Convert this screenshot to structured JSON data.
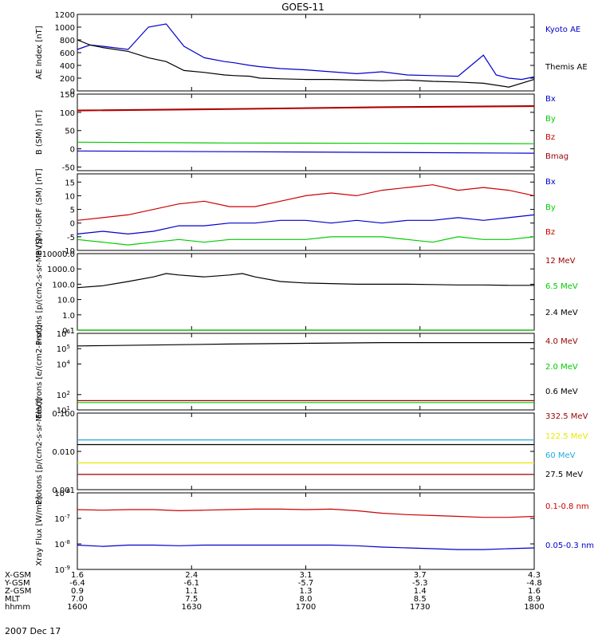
{
  "title": "GOES-11",
  "date_label": "2007 Dec 17",
  "colors": {
    "black": "#000000",
    "blue": "#0000cc",
    "red": "#cc0000",
    "green": "#00cc00",
    "darkred": "#990000",
    "yellow": "#e8e800",
    "cyan": "#22a8dd"
  },
  "chart_data": [
    {
      "id": "ae",
      "type": "line",
      "ylabel": "AE Index [nT]",
      "yscale": "linear",
      "ylim": [
        0,
        1200
      ],
      "yticks": [
        0,
        200,
        400,
        600,
        800,
        1000,
        1200
      ],
      "ytick_labels": [
        "0",
        "200",
        "400",
        "600",
        "800",
        "1000",
        "1200"
      ],
      "series": [
        {
          "name": "Kyoto AE",
          "color_key": "blue",
          "t": [
            0,
            5,
            10,
            20,
            28,
            35,
            42,
            50,
            58,
            62,
            68,
            72,
            80,
            90,
            100,
            110,
            120,
            130,
            140,
            150,
            160,
            165,
            170,
            175,
            180
          ],
          "v": [
            650,
            720,
            700,
            650,
            1000,
            1050,
            700,
            520,
            460,
            440,
            400,
            380,
            350,
            330,
            300,
            270,
            300,
            250,
            240,
            230,
            560,
            250,
            200,
            180,
            220
          ]
        },
        {
          "name": "Themis AE",
          "color_key": "black",
          "t": [
            0,
            5,
            10,
            20,
            28,
            35,
            42,
            50,
            58,
            62,
            68,
            72,
            80,
            90,
            100,
            110,
            120,
            130,
            140,
            150,
            160,
            170,
            180
          ],
          "v": [
            800,
            720,
            680,
            620,
            520,
            460,
            320,
            290,
            250,
            240,
            230,
            200,
            190,
            180,
            180,
            170,
            160,
            170,
            150,
            140,
            120,
            60,
            180
          ]
        }
      ]
    },
    {
      "id": "bsm",
      "type": "line",
      "ylabel": "B (SM) [nT]",
      "yscale": "linear",
      "ylim": [
        -60,
        150
      ],
      "yticks": [
        -50,
        0,
        50,
        100,
        150
      ],
      "ytick_labels": [
        "-50",
        "0",
        "50",
        "100",
        "150"
      ],
      "series": [
        {
          "name": "Bx",
          "color_key": "blue",
          "t": [
            0,
            60,
            120,
            180
          ],
          "v": [
            -6,
            -8,
            -10,
            -12
          ]
        },
        {
          "name": "By",
          "color_key": "green",
          "t": [
            0,
            60,
            120,
            180
          ],
          "v": [
            18,
            16,
            15,
            14
          ]
        },
        {
          "name": "Bz",
          "color_key": "red",
          "t": [
            0,
            60,
            120,
            180
          ],
          "v": [
            104,
            108,
            113,
            116
          ]
        },
        {
          "name": "Bmag",
          "color_key": "darkred",
          "t": [
            0,
            60,
            120,
            180
          ],
          "v": [
            106,
            110,
            115,
            118
          ]
        }
      ]
    },
    {
      "id": "bdiff",
      "type": "line",
      "ylabel": "B (SM)-IGRF (SM) [nT]",
      "yscale": "linear",
      "ylim": [
        -10,
        18
      ],
      "yticks": [
        -10,
        -5,
        0,
        5,
        10,
        15
      ],
      "ytick_labels": [
        "-10",
        "-5",
        "0",
        "5",
        "10",
        "15"
      ],
      "series": [
        {
          "name": "Bx",
          "color_key": "blue",
          "t": [
            0,
            10,
            20,
            30,
            40,
            50,
            60,
            70,
            80,
            90,
            100,
            110,
            120,
            130,
            140,
            150,
            160,
            170,
            180
          ],
          "v": [
            -4,
            -3,
            -4,
            -3,
            -1,
            -1,
            0,
            0,
            1,
            1,
            0,
            1,
            0,
            1,
            1,
            2,
            1,
            2,
            3
          ]
        },
        {
          "name": "By",
          "color_key": "green",
          "t": [
            0,
            10,
            20,
            30,
            40,
            50,
            60,
            70,
            80,
            90,
            100,
            110,
            120,
            130,
            140,
            150,
            160,
            170,
            180
          ],
          "v": [
            -6,
            -7,
            -8,
            -7,
            -6,
            -7,
            -6,
            -6,
            -6,
            -6,
            -5,
            -5,
            -5,
            -6,
            -7,
            -5,
            -6,
            -6,
            -5
          ]
        },
        {
          "name": "Bz",
          "color_key": "red",
          "t": [
            0,
            10,
            20,
            30,
            40,
            50,
            60,
            70,
            80,
            90,
            100,
            110,
            120,
            130,
            140,
            150,
            160,
            170,
            180
          ],
          "v": [
            1,
            2,
            3,
            5,
            7,
            8,
            6,
            6,
            8,
            10,
            11,
            10,
            12,
            13,
            14,
            12,
            13,
            12,
            10
          ]
        }
      ]
    },
    {
      "id": "protons_hi",
      "type": "line",
      "ylabel": "Protons [p/(cm2-s-sr-MeV)]",
      "yscale": "log",
      "ylim": [
        0.1,
        10000
      ],
      "yticks": [
        0.1,
        1,
        10,
        100,
        1000,
        10000
      ],
      "ytick_labels": [
        "0.1",
        "1.0",
        "10.0",
        "100.0",
        "1000.0",
        "10000.0"
      ],
      "series": [
        {
          "name": "12 MeV",
          "color_key": "darkred",
          "t": [
            0,
            180
          ],
          "v": [
            0.1,
            0.1
          ]
        },
        {
          "name": "6.5 MeV",
          "color_key": "green",
          "t": [
            0,
            180
          ],
          "v": [
            0.1,
            0.1
          ]
        },
        {
          "name": "2.4 MeV",
          "color_key": "black",
          "t": [
            0,
            10,
            20,
            30,
            35,
            40,
            50,
            60,
            65,
            70,
            80,
            90,
            100,
            110,
            120,
            130,
            140,
            150,
            160,
            170,
            180
          ],
          "v": [
            60,
            80,
            150,
            300,
            500,
            400,
            300,
            400,
            500,
            300,
            150,
            120,
            110,
            100,
            100,
            100,
            95,
            90,
            90,
            85,
            85
          ]
        }
      ]
    },
    {
      "id": "electrons",
      "type": "line",
      "ylabel": "Electrons [e/(cm2-s-sr)]",
      "yscale": "log",
      "ylim": [
        10,
        1000000
      ],
      "yticks": [
        10,
        100,
        10000,
        100000,
        1000000
      ],
      "ytick_labels": [
        "10^1",
        "10^2",
        "10^4",
        "10^5",
        "10^6"
      ],
      "series": [
        {
          "name": "4.0 MeV",
          "color_key": "darkred",
          "t": [
            0,
            180
          ],
          "v": [
            40,
            40
          ]
        },
        {
          "name": "2.0 MeV",
          "color_key": "green",
          "t": [
            0,
            180
          ],
          "v": [
            30,
            30
          ]
        },
        {
          "name": "0.6 MeV",
          "color_key": "black",
          "t": [
            0,
            60,
            120,
            180
          ],
          "v": [
            150000,
            200000,
            250000,
            250000
          ]
        }
      ]
    },
    {
      "id": "protons_lo",
      "type": "line",
      "ylabel": "Protons [p/(cm2-s-sr-MeV)]",
      "yscale": "log",
      "ylim": [
        0.001,
        0.1
      ],
      "yticks": [
        0.001,
        0.01,
        0.1
      ],
      "ytick_labels": [
        "0.001",
        "0.010",
        "0.100"
      ],
      "series": [
        {
          "name": "332.5 MeV",
          "color_key": "darkred",
          "t": [
            0,
            180
          ],
          "v": [
            0.0025,
            0.0025
          ]
        },
        {
          "name": "122.5 MeV",
          "color_key": "yellow",
          "t": [
            0,
            180
          ],
          "v": [
            0.005,
            0.005
          ]
        },
        {
          "name": "60 MeV",
          "color_key": "cyan",
          "t": [
            0,
            180
          ],
          "v": [
            0.02,
            0.02
          ]
        },
        {
          "name": "27.5 MeV",
          "color_key": "black",
          "t": [
            0,
            180
          ],
          "v": [
            0.015,
            0.015
          ]
        }
      ]
    },
    {
      "id": "xray",
      "type": "line",
      "ylabel": "Xray Flux [W/m2]",
      "yscale": "log",
      "ylim": [
        1e-09,
        1e-06
      ],
      "yticks": [
        1e-09,
        1e-08,
        1e-07,
        1e-06
      ],
      "ytick_labels": [
        "10^-9",
        "10^-8",
        "10^-7",
        "10^-6"
      ],
      "series": [
        {
          "name": "0.1-0.8 nm",
          "color_key": "red",
          "t": [
            0,
            10,
            20,
            30,
            40,
            50,
            60,
            70,
            80,
            90,
            100,
            110,
            120,
            130,
            140,
            150,
            160,
            170,
            180
          ],
          "v": [
            2.2e-07,
            2.1e-07,
            2.2e-07,
            2.2e-07,
            2e-07,
            2.1e-07,
            2.2e-07,
            2.3e-07,
            2.3e-07,
            2.2e-07,
            2.3e-07,
            2e-07,
            1.6e-07,
            1.4e-07,
            1.3e-07,
            1.2e-07,
            1.1e-07,
            1.1e-07,
            1.2e-07
          ]
        },
        {
          "name": "0.05-0.3 nm",
          "color_key": "blue",
          "t": [
            0,
            10,
            20,
            30,
            40,
            50,
            60,
            70,
            80,
            90,
            100,
            110,
            120,
            130,
            140,
            150,
            160,
            170,
            180
          ],
          "v": [
            9e-09,
            8e-09,
            9e-09,
            9e-09,
            8.5e-09,
            9e-09,
            9e-09,
            9e-09,
            9e-09,
            9e-09,
            9e-09,
            8.5e-09,
            7.5e-09,
            7e-09,
            6.5e-09,
            6e-09,
            6e-09,
            6.5e-09,
            7e-09
          ]
        }
      ]
    }
  ],
  "xaxis": {
    "row_labels": [
      "X-GSM",
      "Y-GSM",
      "Z-GSM",
      "MLT",
      "hhmm"
    ],
    "ticks": [
      {
        "t": 0,
        "values": [
          "1.6",
          "-6.4",
          "0.9",
          "7.0",
          "1600"
        ]
      },
      {
        "t": 45,
        "values": [
          "2.4",
          "-6.1",
          "1.1",
          "7.5",
          "1630"
        ]
      },
      {
        "t": 90,
        "values": [
          "3.1",
          "-5.7",
          "1.3",
          "8.0",
          "1700"
        ]
      },
      {
        "t": 135,
        "values": [
          "3.7",
          "-5.3",
          "1.4",
          "8.5",
          "1730"
        ]
      },
      {
        "t": 180,
        "values": [
          "4.3",
          "-4.8",
          "1.6",
          "8.9",
          "1800"
        ]
      }
    ]
  }
}
